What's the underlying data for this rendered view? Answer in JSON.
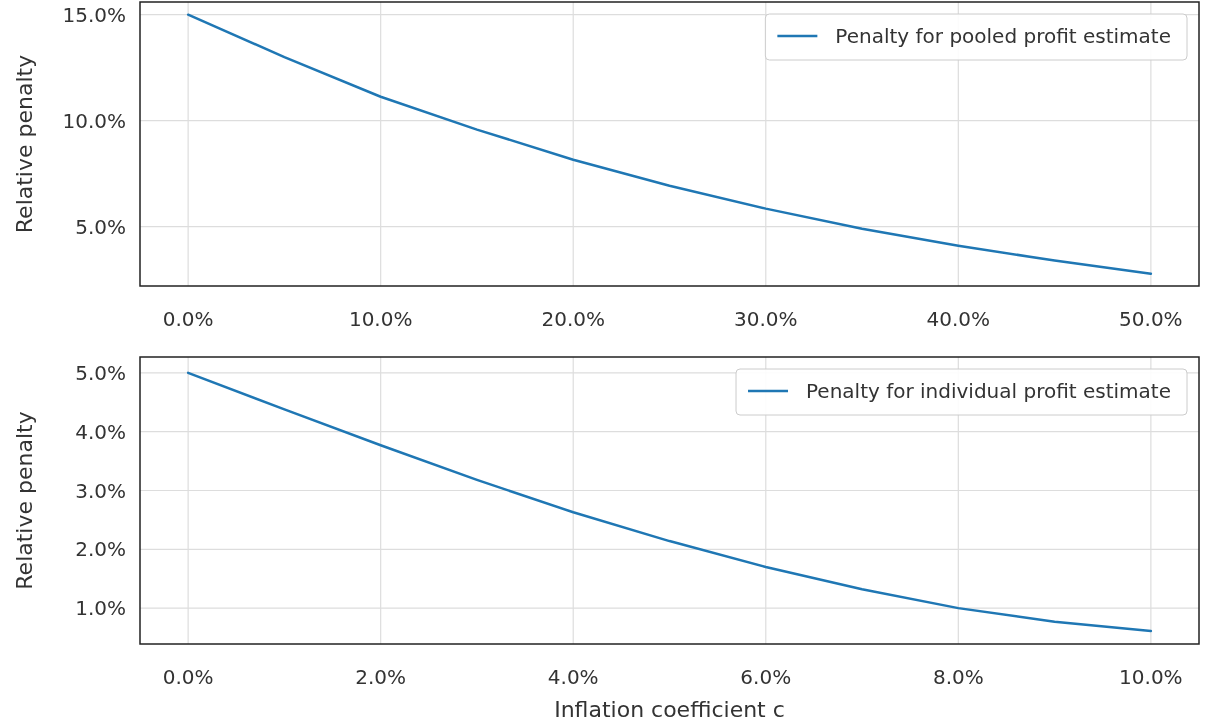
{
  "chart_data": [
    {
      "type": "line",
      "ylabel": "Relative penalty",
      "x": [
        0,
        5,
        10,
        15,
        20,
        25,
        30,
        35,
        40,
        45,
        50
      ],
      "series": [
        {
          "name": "Penalty for pooled profit estimate",
          "color": "#1f77b4",
          "values": [
            15.0,
            13.0,
            11.13,
            9.58,
            8.16,
            6.93,
            5.85,
            4.9,
            4.1,
            3.4,
            2.78
          ]
        }
      ],
      "xlim": [
        -2.5,
        52.5
      ],
      "ylim": [
        2.2,
        15.6
      ],
      "xticks": [
        {
          "value": 0,
          "label": "0.0%"
        },
        {
          "value": 10,
          "label": "10.0%"
        },
        {
          "value": 20,
          "label": "20.0%"
        },
        {
          "value": 30,
          "label": "30.0%"
        },
        {
          "value": 40,
          "label": "40.0%"
        },
        {
          "value": 50,
          "label": "50.0%"
        }
      ],
      "yticks": [
        {
          "value": 5,
          "label": "5.0%"
        },
        {
          "value": 10,
          "label": "10.0%"
        },
        {
          "value": 15,
          "label": "15.0%"
        }
      ],
      "grid": true,
      "legend": "top right",
      "marker": "none",
      "line_style": "solid"
    },
    {
      "type": "line",
      "xlabel": "Inflation coefficient c",
      "ylabel": "Relative penalty",
      "x": [
        0,
        1,
        2,
        3,
        4,
        5,
        6,
        7,
        8,
        9,
        10
      ],
      "series": [
        {
          "name": "Penalty for individual profit estimate",
          "color": "#1f77b4",
          "values": [
            5.0,
            4.38,
            3.77,
            3.18,
            2.63,
            2.14,
            1.7,
            1.32,
            1.0,
            0.77,
            0.61
          ]
        }
      ],
      "xlim": [
        -0.5,
        10.5
      ],
      "ylim": [
        0.39,
        5.27
      ],
      "xticks": [
        {
          "value": 0,
          "label": "0.0%"
        },
        {
          "value": 2,
          "label": "2.0%"
        },
        {
          "value": 4,
          "label": "4.0%"
        },
        {
          "value": 6,
          "label": "6.0%"
        },
        {
          "value": 8,
          "label": "8.0%"
        },
        {
          "value": 10,
          "label": "10.0%"
        }
      ],
      "yticks": [
        {
          "value": 1,
          "label": "1.0%"
        },
        {
          "value": 2,
          "label": "2.0%"
        },
        {
          "value": 3,
          "label": "3.0%"
        },
        {
          "value": 4,
          "label": "4.0%"
        },
        {
          "value": 5,
          "label": "5.0%"
        }
      ],
      "grid": true,
      "legend": "top right",
      "marker": "none",
      "line_style": "solid"
    }
  ]
}
